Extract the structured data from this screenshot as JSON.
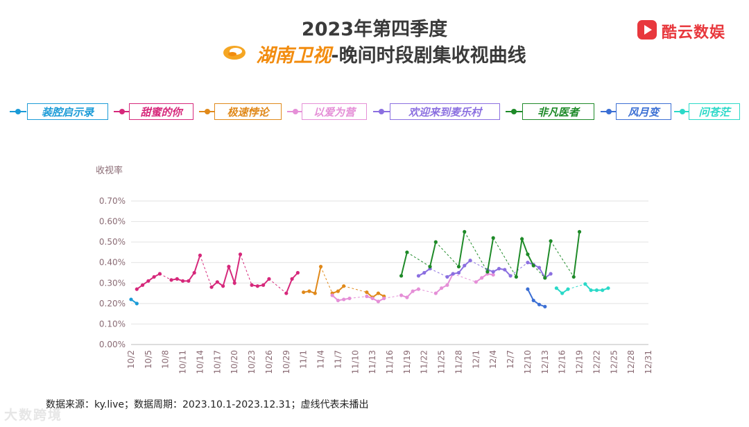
{
  "header": {
    "title_line1": "2023年第四季度",
    "channel_name": "湖南卫视",
    "title_suffix": "-晚间时段剧集收视曲线"
  },
  "brand": {
    "name": "酷云数娱",
    "color": "#e8383d"
  },
  "footnote": "数据来源：ky.live；数据周期：2023.10.1-2023.12.31；虚线代表未播出",
  "watermark": "大数跨境",
  "chart_data": {
    "type": "line",
    "ylabel": "收视率",
    "ylim": [
      0,
      0.7
    ],
    "y_ticks": [
      "0.00%",
      "0.10%",
      "0.20%",
      "0.30%",
      "0.40%",
      "0.50%",
      "0.60%",
      "0.70%"
    ],
    "x_start_day": 2,
    "x_end_day": 92,
    "x_tick_labels": [
      "10/2",
      "10/5",
      "10/8",
      "10/11",
      "10/14",
      "10/17",
      "10/20",
      "10/23",
      "10/26",
      "10/29",
      "11/1",
      "11/4",
      "11/7",
      "11/10",
      "11/13",
      "11/16",
      "11/19",
      "11/22",
      "11/25",
      "11/28",
      "12/1",
      "12/4",
      "12/7",
      "12/10",
      "12/13",
      "12/16",
      "12/19",
      "12/22",
      "12/25",
      "12/28",
      "12/31"
    ],
    "grid": true,
    "legend_position": "top",
    "series": [
      {
        "name": "装腔启示录",
        "color": "#1b9bd7",
        "points": [
          [
            2,
            0.22
          ],
          [
            3,
            0.2
          ]
        ]
      },
      {
        "name": "甜蜜的你",
        "color": "#d6287b",
        "points": [
          [
            3,
            0.27
          ],
          [
            4,
            0.29
          ],
          [
            5,
            0.31
          ],
          [
            6,
            0.33
          ],
          [
            7,
            0.345
          ],
          null,
          [
            9,
            0.315
          ],
          [
            10,
            0.32
          ],
          [
            11,
            0.31
          ],
          [
            12,
            0.31
          ],
          [
            13,
            0.35
          ],
          [
            14,
            0.435
          ],
          null,
          [
            16,
            0.28
          ],
          [
            17,
            0.305
          ],
          [
            18,
            0.285
          ],
          [
            19,
            0.38
          ],
          [
            20,
            0.3
          ],
          [
            21,
            0.44
          ],
          null,
          [
            23,
            0.29
          ],
          [
            24,
            0.285
          ],
          [
            25,
            0.29
          ],
          [
            26,
            0.32
          ],
          null,
          [
            29,
            0.25
          ],
          [
            30,
            0.32
          ],
          [
            31,
            0.35
          ]
        ]
      },
      {
        "name": "极速悖论",
        "color": "#e0891a",
        "points": [
          [
            32,
            0.255
          ],
          [
            33,
            0.26
          ],
          [
            34,
            0.25
          ],
          [
            35,
            0.38
          ],
          null,
          [
            37,
            0.25
          ],
          [
            38,
            0.26
          ],
          [
            39,
            0.285
          ],
          null,
          [
            43,
            0.255
          ],
          [
            44,
            0.23
          ],
          [
            45,
            0.25
          ],
          [
            46,
            0.235
          ]
        ]
      },
      {
        "name": "以爱为营",
        "color": "#e58fd7",
        "points": [
          [
            37,
            0.24
          ],
          [
            38,
            0.215
          ],
          [
            39,
            0.22
          ],
          [
            40,
            0.225
          ],
          null,
          [
            43,
            0.235
          ],
          [
            44,
            0.225
          ],
          [
            45,
            0.21
          ],
          [
            46,
            0.225
          ],
          null,
          [
            49,
            0.24
          ],
          [
            50,
            0.23
          ],
          [
            51,
            0.26
          ],
          [
            52,
            0.27
          ],
          null,
          [
            55,
            0.25
          ],
          [
            56,
            0.275
          ],
          [
            57,
            0.29
          ],
          [
            58,
            0.345
          ],
          null,
          [
            62,
            0.305
          ],
          [
            63,
            0.325
          ],
          [
            64,
            0.345
          ],
          [
            65,
            0.34
          ]
        ]
      },
      {
        "name": "欢迎来到麦乐村",
        "color": "#8b6fe0",
        "points": [
          [
            52,
            0.335
          ],
          [
            53,
            0.35
          ],
          [
            54,
            0.37
          ],
          null,
          [
            57,
            0.33
          ],
          [
            58,
            0.345
          ],
          [
            59,
            0.35
          ],
          [
            60,
            0.385
          ],
          [
            61,
            0.41
          ],
          null,
          [
            64,
            0.365
          ],
          [
            65,
            0.355
          ],
          [
            66,
            0.37
          ],
          [
            67,
            0.365
          ],
          [
            68,
            0.335
          ],
          null,
          [
            71,
            0.4
          ],
          [
            72,
            0.39
          ],
          [
            73,
            0.375
          ],
          [
            74,
            0.325
          ],
          [
            75,
            0.345
          ]
        ]
      },
      {
        "name": "非凡医者",
        "color": "#1e8a28",
        "points": [
          [
            49,
            0.335
          ],
          [
            50,
            0.45
          ],
          null,
          [
            54,
            0.38
          ],
          [
            55,
            0.5
          ],
          null,
          [
            59,
            0.38
          ],
          [
            60,
            0.55
          ],
          null,
          [
            64,
            0.355
          ],
          [
            65,
            0.52
          ],
          null,
          [
            69,
            0.33
          ],
          [
            70,
            0.515
          ],
          [
            71,
            0.44
          ],
          [
            72,
            0.385
          ],
          null,
          [
            74,
            0.325
          ],
          [
            75,
            0.505
          ],
          null,
          [
            79,
            0.33
          ],
          [
            80,
            0.55
          ]
        ]
      },
      {
        "name": "风月变",
        "color": "#3b6fd4",
        "points": [
          [
            71,
            0.27
          ],
          [
            72,
            0.215
          ],
          [
            73,
            0.195
          ],
          [
            74,
            0.185
          ]
        ]
      },
      {
        "name": "问苍茫",
        "color": "#2ad9c8",
        "points": [
          [
            76,
            0.275
          ],
          [
            77,
            0.25
          ],
          [
            78,
            0.27
          ],
          null,
          [
            81,
            0.295
          ],
          [
            82,
            0.265
          ],
          [
            83,
            0.265
          ],
          [
            84,
            0.265
          ],
          [
            85,
            0.275
          ]
        ]
      }
    ]
  }
}
